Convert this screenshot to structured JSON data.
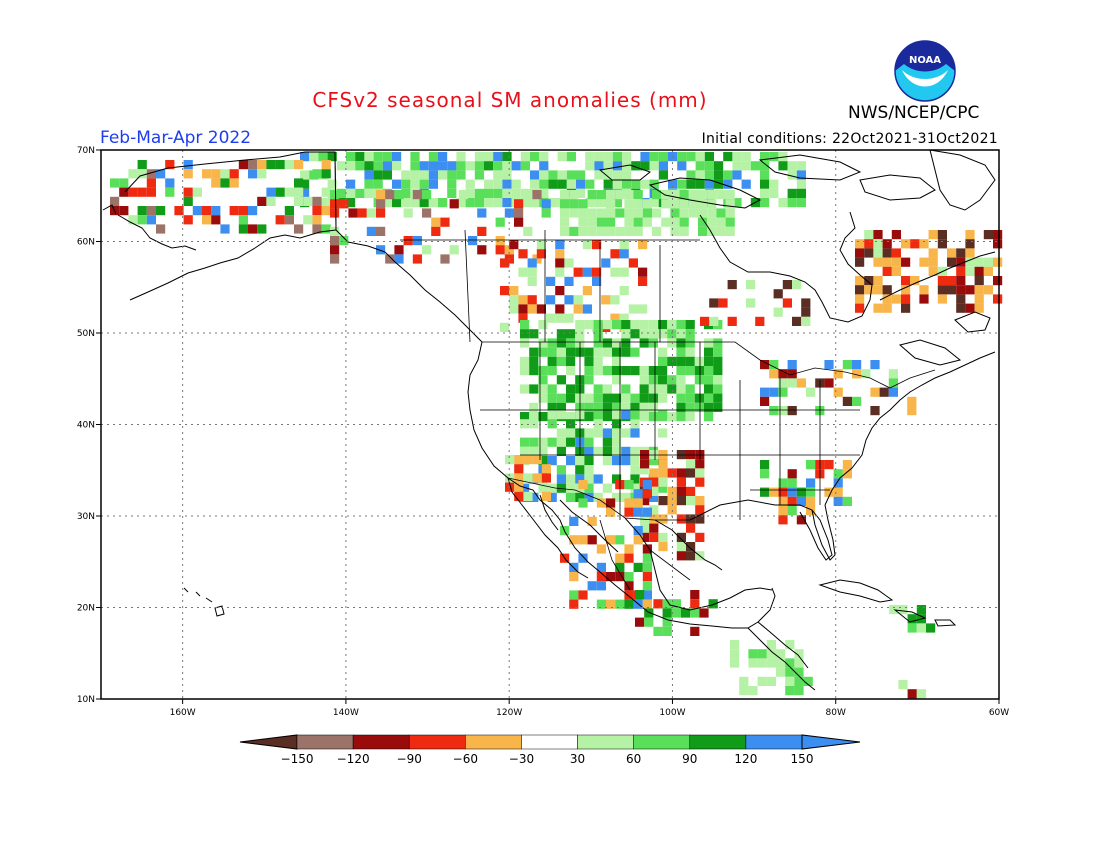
{
  "title": "CFSv2 seasonal SM anomalies (mm)",
  "period": "Feb-Mar-Apr 2022",
  "initial_conditions": "Initial conditions: 22Oct2021-31Oct2021",
  "agency": "NWS/NCEP/CPC",
  "logo_text": "NOAA",
  "map": {
    "region": "North America",
    "lon_labels": [
      "160W",
      "140W",
      "120W",
      "100W",
      "80W",
      "60W"
    ],
    "lat_labels": [
      "70N",
      "60N",
      "50N",
      "40N",
      "30N",
      "20N",
      "10N"
    ],
    "lon_range": [
      -170,
      -60
    ],
    "lat_range": [
      10,
      70
    ],
    "grid": "dotted"
  },
  "colorbar": {
    "labels": [
      "-150",
      "-120",
      "-90",
      "-60",
      "-30",
      "30",
      "60",
      "90",
      "120",
      "150"
    ],
    "colors": [
      "#5a2e22",
      "#9c7368",
      "#9a0c0c",
      "#ee2a10",
      "#f7b54a",
      "#ffffff",
      "#b5f2a6",
      "#5adf5a",
      "#109b18",
      "#3c8ff0",
      "#3c8ff0"
    ]
  },
  "chart_data": {
    "type": "heatmap",
    "title": "CFSv2 seasonal SM anomalies (mm)",
    "subtitle": "Feb-Mar-Apr 2022",
    "units": "mm",
    "bins": [
      {
        "range": [
          -9999,
          -150
        ],
        "color": "#5a2e22"
      },
      {
        "range": [
          -150,
          -120
        ],
        "color": "#9c7368"
      },
      {
        "range": [
          -120,
          -90
        ],
        "color": "#9a0c0c"
      },
      {
        "range": [
          -90,
          -60
        ],
        "color": "#ee2a10"
      },
      {
        "range": [
          -60,
          -30
        ],
        "color": "#f7b54a"
      },
      {
        "range": [
          -30,
          30
        ],
        "color": "#ffffff"
      },
      {
        "range": [
          30,
          60
        ],
        "color": "#b5f2a6"
      },
      {
        "range": [
          60,
          90
        ],
        "color": "#5adf5a"
      },
      {
        "range": [
          90,
          120
        ],
        "color": "#109b18"
      },
      {
        "range": [
          120,
          150
        ],
        "color": "#3c8ff0"
      },
      {
        "range": [
          150,
          9999
        ],
        "color": "#3c8ff0"
      }
    ],
    "regions": [
      {
        "name": "Northern Alaska / Arctic coast",
        "anomaly": "wet",
        "class": "30 to 60 mm with patches 60 to 120"
      },
      {
        "name": "Northern Canada / Arctic",
        "anomaly": "wet",
        "class": "30 to 90 mm"
      },
      {
        "name": "Northern Great Plains",
        "anomaly": "wet",
        "class": "60 to 120 mm"
      },
      {
        "name": "Southern Plains / Texas",
        "anomaly": "dry",
        "class": "-30 to -120 mm"
      },
      {
        "name": "Northern Mexico",
        "anomaly": "dry",
        "class": "-30 to -150 mm"
      },
      {
        "name": "Quebec / Labrador",
        "anomaly": "dry",
        "class": "-30 to -60 mm"
      },
      {
        "name": "Southeast US",
        "anomaly": "mixed",
        "class": "-150 to 150 mm"
      }
    ]
  }
}
